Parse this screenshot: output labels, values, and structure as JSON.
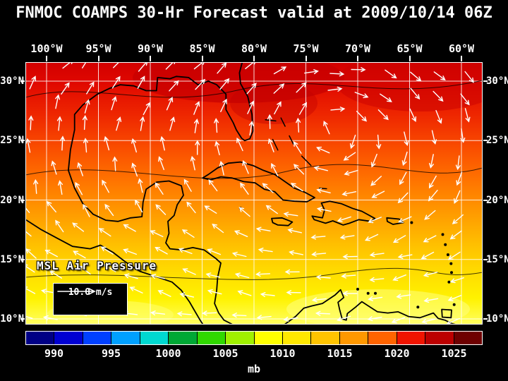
{
  "title": "FNMOC COAMPS 30-Hr Forecast valid at 2009/10/14 06Z",
  "axes": {
    "lon_labels": [
      "100°W",
      "95°W",
      "90°W",
      "85°W",
      "80°W",
      "75°W",
      "70°W",
      "65°W",
      "60°W"
    ],
    "lon_values_deg_w": [
      100,
      95,
      90,
      85,
      80,
      75,
      70,
      65,
      60
    ],
    "lat_labels": [
      "30°N",
      "25°N",
      "20°N",
      "15°N",
      "10°N"
    ],
    "lat_values_deg_n": [
      30,
      25,
      20,
      15,
      10
    ]
  },
  "map": {
    "overlay_label": "MSL Air Pressure",
    "wind_ref_label": "10.0 m/s"
  },
  "colorbar": {
    "unit": "mb",
    "tick_labels": [
      "990",
      "995",
      "1000",
      "1005",
      "1010",
      "1015",
      "1020",
      "1025"
    ],
    "min_mb": 987.5,
    "max_mb": 1027.5,
    "step_mb": 2.5,
    "colors": [
      "#000085",
      "#0000d2",
      "#0040ff",
      "#00a0ff",
      "#00d8d0",
      "#00a835",
      "#30d800",
      "#a0f000",
      "#ffff00",
      "#ffe800",
      "#ffc400",
      "#ff9800",
      "#ff6400",
      "#f01400",
      "#bc0000",
      "#6e0000"
    ]
  },
  "chart_data": {
    "type": "heatmap",
    "title": "FNMOC COAMPS 30-Hr Forecast valid at 2009/10/14 06Z",
    "variable": "MSL Air Pressure",
    "units": "mb",
    "lon_range_deg_w": [
      100,
      60
    ],
    "lat_range_deg_n": [
      10,
      30
    ],
    "colorbar_levels_mb": [
      990,
      995,
      1000,
      1005,
      1010,
      1015,
      1020,
      1025
    ],
    "wind_reference_ms": 10.0,
    "approx_pressure_by_lat": [
      {
        "lat_deg_n": 30,
        "mb": 1018
      },
      {
        "lat_deg_n": 25,
        "mb": 1015
      },
      {
        "lat_deg_n": 20,
        "mb": 1013
      },
      {
        "lat_deg_n": 15,
        "mb": 1011
      },
      {
        "lat_deg_n": 10,
        "mb": 1009
      }
    ],
    "wind_pattern": "anticyclonic clockwise flow around subtropical high; easterly trade winds south of 20N",
    "region": "Gulf of Mexico and Caribbean Sea"
  }
}
